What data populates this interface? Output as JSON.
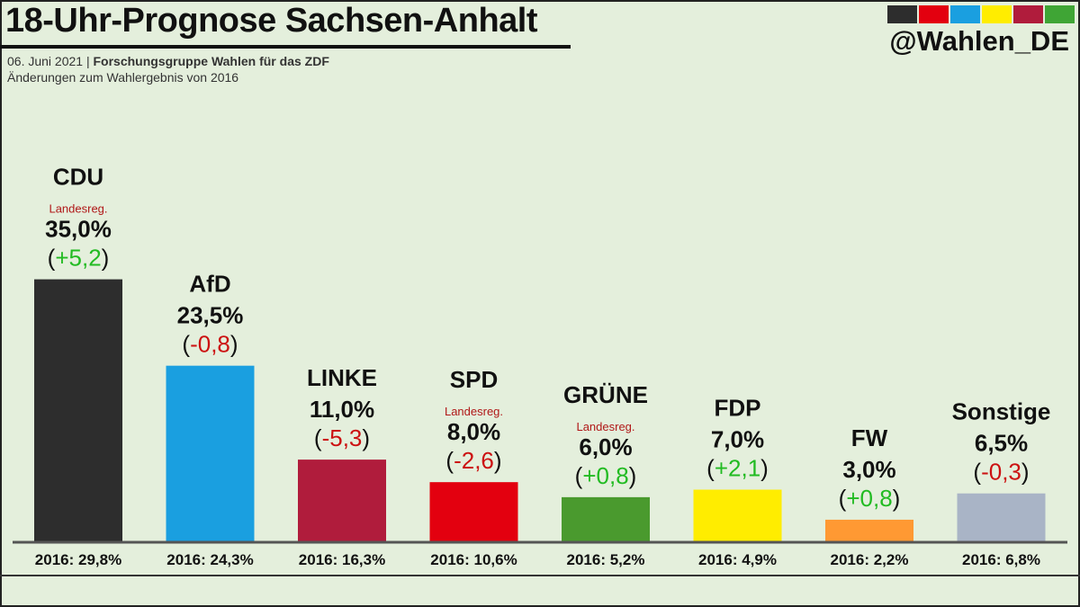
{
  "header": {
    "title": "18-Uhr-Prognose Sachsen-Anhalt",
    "date": "06. Juni 2021",
    "separator": "|",
    "source": "Forschungsgruppe Wahlen für das ZDF",
    "note": "Änderungen zum Wahlergebnis von 2016",
    "handle": "@Wahlen_DE"
  },
  "palette": [
    "#2d2d2d",
    "#e3000f",
    "#1a9fe0",
    "#ffed00",
    "#b01c3c",
    "#3fa535"
  ],
  "colors": {
    "positive": "#22bb22",
    "negative": "#cc1111",
    "axis": "#555555"
  },
  "chart_data": {
    "type": "bar",
    "title": "18-Uhr-Prognose Sachsen-Anhalt",
    "categories": [
      "CDU",
      "AfD",
      "LINKE",
      "SPD",
      "GRÜNE",
      "FDP",
      "FW",
      "Sonstige"
    ],
    "values": [
      35.0,
      23.5,
      11.0,
      8.0,
      6.0,
      7.0,
      3.0,
      6.5
    ],
    "value_labels": [
      "35,0%",
      "23,5%",
      "11,0%",
      "8,0%",
      "6,0%",
      "7,0%",
      "3,0%",
      "6,5%"
    ],
    "changes": [
      5.2,
      -0.8,
      -5.3,
      -2.6,
      0.8,
      2.1,
      0.8,
      -0.3
    ],
    "change_labels": [
      "(+5,2)",
      "(-0,8)",
      "(-5,3)",
      "(-2,6)",
      "(+0,8)",
      "(+2,1)",
      "(+0,8)",
      "(-0,3)"
    ],
    "government": [
      true,
      false,
      false,
      true,
      true,
      false,
      false,
      false
    ],
    "government_label": "Landesreg.",
    "previous_labels": [
      "2016: 29,8%",
      "2016: 24,3%",
      "2016: 16,3%",
      "2016: 10,6%",
      "2016: 5,2%",
      "2016: 4,9%",
      "2016: 2,2%",
      "2016: 6,8%"
    ],
    "bar_colors": [
      "#2d2d2d",
      "#1a9fe0",
      "#b01c3c",
      "#e3000f",
      "#4a9a2e",
      "#ffed00",
      "#ff9933",
      "#a9b4c6"
    ],
    "ylim": [
      0,
      40
    ],
    "xlabel": "",
    "ylabel": "",
    "grid": false
  }
}
